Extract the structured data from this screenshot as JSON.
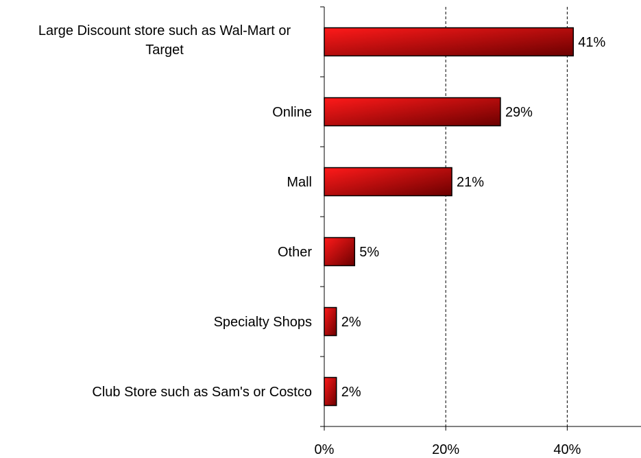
{
  "chart_data": {
    "type": "bar",
    "orientation": "horizontal",
    "categories": [
      [
        "Large Discount store such as Wal-Mart or",
        "Target"
      ],
      [
        "Online"
      ],
      [
        "Mall"
      ],
      [
        "Other"
      ],
      [
        "Specialty Shops"
      ],
      [
        "Club Store such as Sam's or Costco"
      ]
    ],
    "values": [
      41,
      29,
      21,
      5,
      2,
      2
    ],
    "value_labels": [
      "41%",
      "29%",
      "21%",
      "5%",
      "2%",
      "2%"
    ],
    "x_ticks": [
      0,
      20,
      40
    ],
    "x_tick_labels": [
      "0%",
      "20%",
      "40%"
    ],
    "xlim": [
      0,
      52
    ],
    "grid": "vertical dashed",
    "bar_color_light": "#ff1a1a",
    "bar_color_dark": "#6b0000",
    "bar_outline": "#000000"
  }
}
